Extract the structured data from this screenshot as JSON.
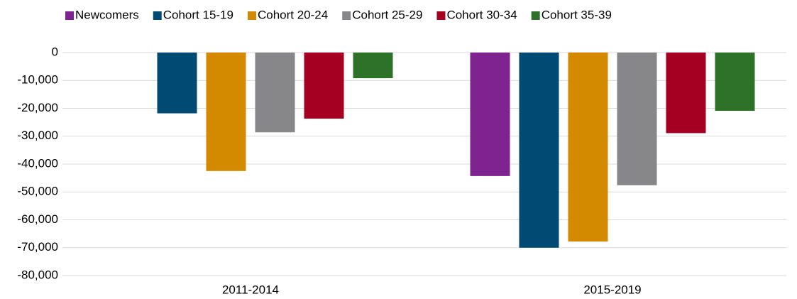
{
  "chart_data": {
    "type": "bar",
    "categories": [
      "2011-2014",
      "2015-2019"
    ],
    "series": [
      {
        "name": "Newcomers",
        "color": "#7f2391",
        "values": [
          null,
          -44300
        ]
      },
      {
        "name": "Cohort 15-19",
        "color": "#004a74",
        "values": [
          -21800,
          -70000
        ]
      },
      {
        "name": "Cohort 20-24",
        "color": "#d48a00",
        "values": [
          -42500,
          -67800
        ]
      },
      {
        "name": "Cohort 25-29",
        "color": "#87878a",
        "values": [
          -28600,
          -47600
        ]
      },
      {
        "name": "Cohort 30-34",
        "color": "#a50021",
        "values": [
          -23700,
          -28900
        ]
      },
      {
        "name": "Cohort 35-39",
        "color": "#2e7229",
        "values": [
          -9200,
          -20900
        ]
      }
    ],
    "ylim": [
      -80000,
      0
    ],
    "yticks": [
      0,
      {
        "value": -10000,
        "label": "-10,000"
      },
      {
        "value": -20000,
        "label": "-20,000"
      },
      {
        "value": -30000,
        "label": "-30,000"
      },
      {
        "value": -40000,
        "label": "-40,000"
      },
      {
        "value": -50000,
        "label": "-50,000"
      },
      {
        "value": -60000,
        "label": "-60,000"
      },
      {
        "value": -70000,
        "label": "-70,000"
      },
      {
        "value": -80000,
        "label": "-80,000"
      }
    ],
    "grid": true
  }
}
